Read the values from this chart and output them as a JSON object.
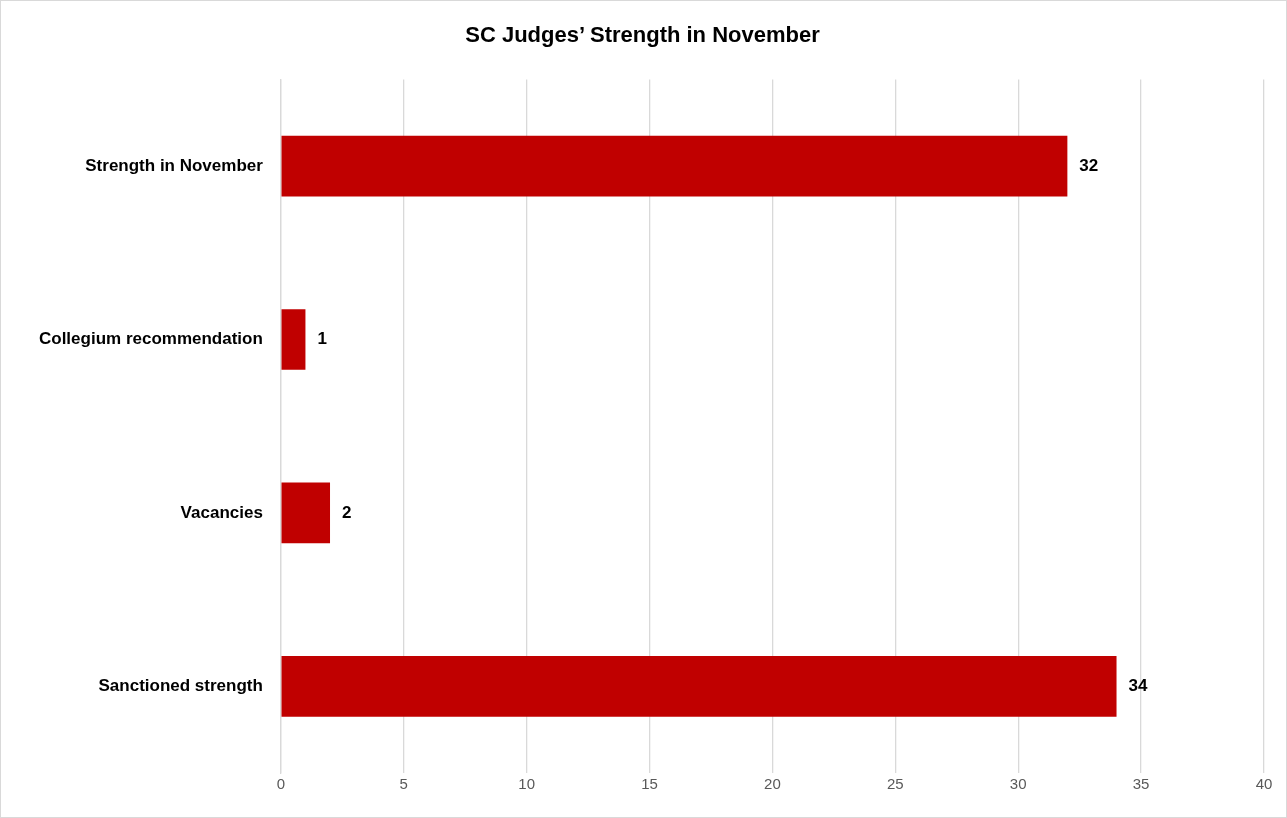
{
  "chart_data": {
    "type": "bar",
    "orientation": "horizontal",
    "title": "SC Judges’ Strength in November",
    "categories": [
      "Strength in November",
      "Collegium recommendation",
      "Vacancies",
      "Sanctioned strength"
    ],
    "values": [
      32,
      1,
      2,
      34
    ],
    "color": "#c00000",
    "data_labels": true,
    "grid": "x",
    "xlim": [
      0,
      40
    ],
    "xticks": [
      0,
      5,
      10,
      15,
      20,
      25,
      30,
      35,
      40
    ],
    "legend": false
  }
}
